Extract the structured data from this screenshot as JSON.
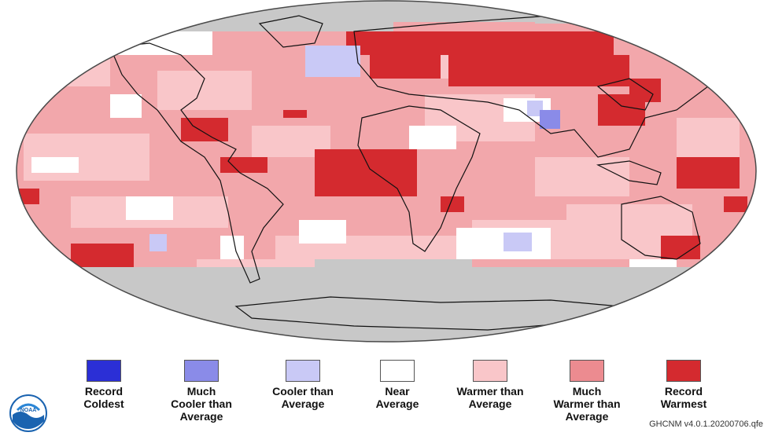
{
  "map": {
    "description_colors": {
      "ocean_missing": "#c8c8c8",
      "frame_stroke": "#4a4a4a",
      "coast_stroke": "#111111"
    }
  },
  "legend": {
    "items": [
      {
        "label": "Record\nColdest",
        "color": "#2b2fd6"
      },
      {
        "label": "Much\nCooler than\nAverage",
        "color": "#8a8be8"
      },
      {
        "label": "Cooler than\nAverage",
        "color": "#c9c9f6"
      },
      {
        "label": "Near\nAverage",
        "color": "#ffffff"
      },
      {
        "label": "Warmer than\nAverage",
        "color": "#f9c6c9"
      },
      {
        "label": "Much\nWarmer than\nAverage",
        "color": "#ec8b90"
      },
      {
        "label": "Record\nWarmest",
        "color": "#d42a2f"
      }
    ]
  },
  "logo": {
    "text": "NOAA"
  },
  "source": "GHCNM v4.0.1.20200706.qfe"
}
